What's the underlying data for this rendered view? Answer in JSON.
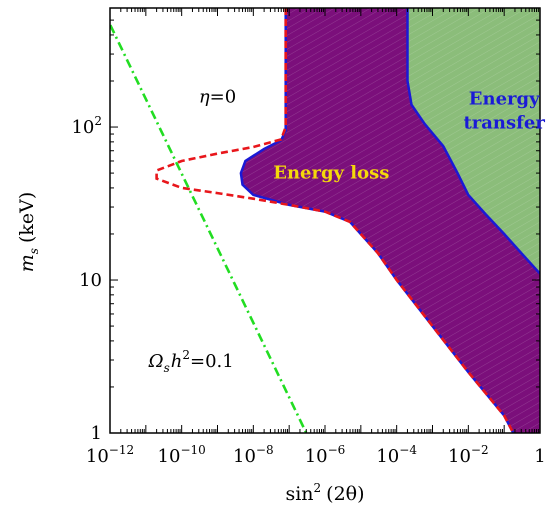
{
  "chart_data": {
    "type": "area",
    "xlabel": "sin",
    "xlabel_sup": "2",
    "xlabel_arg": "(2θ)",
    "ylabel_main": "m",
    "ylabel_sub": "s",
    "ylabel_unit": "(keV)",
    "x_scale": "log",
    "y_scale": "log",
    "xlim": [
      1e-12,
      1
    ],
    "ylim": [
      1,
      600
    ],
    "x_ticks": [
      {
        "value": 1e-12,
        "base": "10",
        "exp": "−12"
      },
      {
        "value": 1e-10,
        "base": "10",
        "exp": "−10"
      },
      {
        "value": 1e-08,
        "base": "10",
        "exp": "−8"
      },
      {
        "value": 1e-06,
        "base": "10",
        "exp": "−6"
      },
      {
        "value": 0.0001,
        "base": "10",
        "exp": "−4"
      },
      {
        "value": 0.01,
        "base": "10",
        "exp": "−2"
      },
      {
        "value": 1,
        "base": "1",
        "exp": ""
      }
    ],
    "y_ticks": [
      {
        "value": 1,
        "base": "1",
        "exp": ""
      },
      {
        "value": 10,
        "base": "10",
        "exp": ""
      },
      {
        "value": 100,
        "base": "10",
        "exp": "2"
      }
    ],
    "regions": [
      {
        "name": "Energy loss",
        "color": "#7b0f7b",
        "label_color": "#f5d90a",
        "label_pos": [
          1.5e-06,
          46
        ],
        "boundary": [
          [
            8e-08,
            600
          ],
          [
            8e-08,
            95
          ],
          [
            6e-08,
            82
          ],
          [
            2e-08,
            72
          ],
          [
            6e-09,
            60
          ],
          [
            4.5e-09,
            50
          ],
          [
            5e-09,
            42
          ],
          [
            1e-08,
            36
          ],
          [
            1e-07,
            31
          ],
          [
            1e-06,
            28
          ],
          [
            5e-06,
            24
          ],
          [
            1e-05,
            20
          ],
          [
            3e-05,
            15
          ],
          [
            0.0001,
            10
          ],
          [
            0.001,
            5
          ],
          [
            0.01,
            2.5
          ],
          [
            0.1,
            1.3
          ],
          [
            0.18,
            1
          ]
        ]
      },
      {
        "name": "Energy transfer",
        "label_lines": [
          "Energy",
          "transfer"
        ],
        "color": "#8bbd7a",
        "label_color": "#1a1ad6",
        "label_pos": [
          0.1,
          140
        ],
        "boundary": [
          [
            0.0002,
            600
          ],
          [
            0.0002,
            200
          ],
          [
            0.00026,
            140
          ],
          [
            0.0006,
            105
          ],
          [
            0.002,
            75
          ],
          [
            0.005,
            50
          ],
          [
            0.01,
            36
          ],
          [
            0.03,
            27
          ],
          [
            0.1,
            20
          ],
          [
            0.3,
            15
          ],
          [
            1,
            11
          ]
        ]
      }
    ],
    "lines": [
      {
        "name": "η=0",
        "color": "#e8161b",
        "style": "dashed",
        "points": [
          [
            8e-08,
            600
          ],
          [
            8e-08,
            100
          ],
          [
            6e-08,
            83
          ],
          [
            1e-08,
            74
          ],
          [
            1e-09,
            67
          ],
          [
            1e-10,
            60
          ],
          [
            2e-11,
            52
          ],
          [
            2e-11,
            46
          ],
          [
            1e-10,
            40
          ],
          [
            1e-09,
            37
          ],
          [
            1e-08,
            34
          ],
          [
            1e-07,
            31
          ],
          [
            1e-06,
            28
          ],
          [
            5e-06,
            24
          ],
          [
            1e-05,
            20
          ],
          [
            3e-05,
            15
          ],
          [
            0.0001,
            10
          ],
          [
            0.001,
            5
          ],
          [
            0.01,
            2.5
          ],
          [
            0.1,
            1.3
          ],
          [
            0.18,
            1
          ]
        ]
      },
      {
        "name": "Ωsh²=0.1",
        "color": "#22dd22",
        "style": "dashdot",
        "points": [
          [
            6e-13,
            600
          ],
          [
            3e-07,
            1
          ]
        ]
      }
    ],
    "annotations": {
      "eta": {
        "text": "η=0",
        "pos": [
          1e-09,
          145
        ]
      },
      "omega": {
        "omega": "Ω",
        "sub": "s",
        "h": "h",
        "sup": "2",
        "rest": "=0.1",
        "pos": [
          1.2e-11,
          2.7
        ]
      }
    }
  }
}
